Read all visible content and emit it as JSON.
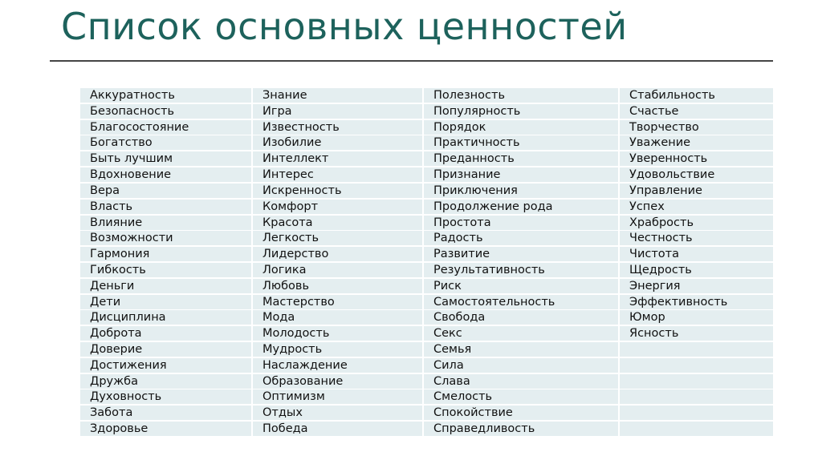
{
  "title": "Список основных ценностей",
  "columns": [
    [
      "Аккуратность",
      "Безопасность",
      "Благосостояние",
      "Богатство",
      "Быть лучшим",
      "Вдохновение",
      "Вера",
      "Власть",
      "Влияние",
      "Возможности",
      "Гармония",
      "Гибкость",
      "Деньги",
      "Дети",
      "Дисциплина",
      "Доброта",
      "Доверие",
      "Достижения",
      "Дружба",
      "Духовность",
      "Забота",
      "Здоровье"
    ],
    [
      "Знание",
      "Игра",
      "Известность",
      "Изобилие",
      "Интеллект",
      "Интерес",
      "Искренность",
      "Комфорт",
      "Красота",
      "Легкость",
      "Лидерство",
      "Логика",
      "Любовь",
      "Мастерство",
      "Мода",
      "Молодость",
      "Мудрость",
      "Наслаждение",
      "Образование",
      "Оптимизм",
      "Отдых",
      "Победа"
    ],
    [
      "Полезность",
      "Популярность",
      "Порядок",
      "Практичность",
      "Преданность",
      "Признание",
      "Приключения",
      "Продолжение рода",
      "Простота",
      "Радость",
      "Развитие",
      "Результативность",
      "Риск",
      "Самостоятельность",
      "Свобода",
      "Секс",
      "Семья",
      "Сила",
      "Слава",
      "Смелость",
      "Спокойствие",
      "Справедливость"
    ],
    [
      "Стабильность",
      "Счастье",
      "Творчество",
      "Уважение",
      "Уверенность",
      "Удовольствие",
      "Управление",
      "Успех",
      "Храбрость",
      "Честность",
      "Чистота",
      "Щедрость",
      "Энергия",
      "Эффективность",
      "Юмор",
      "Ясность",
      "",
      "",
      "",
      "",
      "",
      ""
    ]
  ],
  "colors": {
    "title": "#1d625c",
    "cell_background": "#e4eef0"
  }
}
